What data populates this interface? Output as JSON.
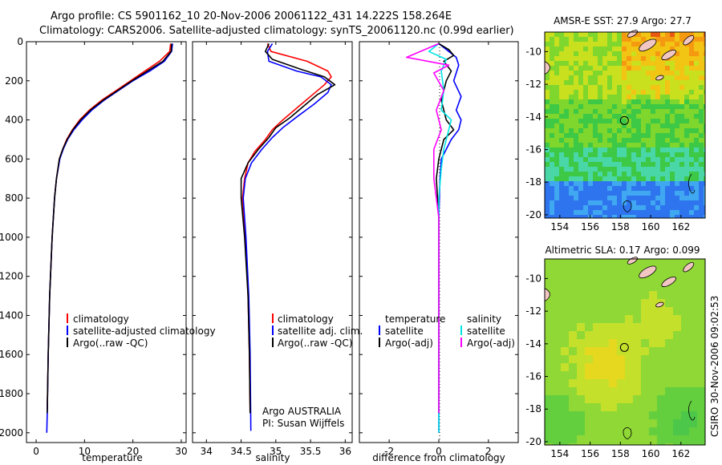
{
  "header": {
    "line1": "Argo profile: CS 5901162_10 20-Nov-2006 20061122_431 14.222S 158.264E",
    "line2": "Climatology: CARS2006. Satellite-adjusted climatology: synTS_20061120.nc (0.99d earlier)"
  },
  "footer": {
    "credit": "CSIRO 30-Nov-2006 09:02:53"
  },
  "colors": {
    "climatology": "#ff0000",
    "satellite": "#0000ff",
    "argo": "#000000",
    "argo_sal_diff": "#ff00ff",
    "sat_sal_diff": "#00e5e5"
  },
  "chart_data": [
    {
      "type": "line",
      "panel": "temperature",
      "xlabel": "temperature",
      "ylabel": "",
      "xlim": [
        -2,
        31
      ],
      "ylim": [
        0,
        2050
      ],
      "xticks": [
        "0",
        "10",
        "20",
        "30"
      ],
      "xtick_values": [
        0,
        10,
        20,
        30
      ],
      "yticks": [
        "0",
        "200",
        "400",
        "600",
        "800",
        "1000",
        "1200",
        "1400",
        "1600",
        "1800",
        "2000"
      ],
      "ytick_values": [
        0,
        200,
        400,
        600,
        800,
        1000,
        1200,
        1400,
        1600,
        1800,
        2000
      ],
      "legend": [
        "climatology",
        "satellite-adjusted climatology",
        "Argo(..raw -QC)"
      ],
      "series": [
        {
          "name": "climatology",
          "color": "#ff0000",
          "x": [
            27.8,
            27.6,
            25.5,
            22.5,
            19.5,
            16.5,
            13.5,
            11,
            9,
            7.5,
            6.3,
            5.5,
            4.8,
            4.2,
            3.8,
            3.3,
            2.8,
            2.5,
            2.3
          ],
          "y": [
            10,
            50,
            100,
            150,
            200,
            250,
            300,
            350,
            400,
            450,
            500,
            550,
            600,
            700,
            800,
            1000,
            1300,
            1600,
            1880
          ]
        },
        {
          "name": "satellite-adjusted climatology",
          "color": "#0000ff",
          "x": [
            28.2,
            28,
            26.5,
            23.5,
            20,
            17,
            14,
            11.5,
            9.5,
            7.8,
            6.5,
            5.6,
            4.9,
            4.2,
            3.8,
            3.3,
            2.8,
            2.5,
            2.3,
            2.2
          ],
          "y": [
            10,
            50,
            100,
            150,
            200,
            250,
            300,
            350,
            400,
            450,
            500,
            550,
            600,
            700,
            800,
            1000,
            1300,
            1600,
            1900,
            2000
          ]
        },
        {
          "name": "Argo(..raw -QC)",
          "color": "#000000",
          "x": [
            28,
            27.9,
            26.2,
            23,
            19.8,
            16.8,
            13.8,
            11.2,
            9.2,
            7.6,
            6.4,
            5.5,
            4.8,
            4.2,
            3.8,
            3.3,
            2.8,
            2.5,
            2.3
          ],
          "y": [
            10,
            50,
            100,
            150,
            200,
            250,
            300,
            350,
            400,
            450,
            500,
            550,
            600,
            700,
            800,
            1000,
            1300,
            1600,
            1900
          ]
        }
      ]
    },
    {
      "type": "line",
      "panel": "salinity",
      "xlabel": "salinity",
      "ylabel": "",
      "xlim": [
        33.8,
        36.1
      ],
      "ylim": [
        0,
        2050
      ],
      "xticks": [
        "34",
        "34.5",
        "35",
        "35.5",
        "36"
      ],
      "xtick_values": [
        34,
        34.5,
        35,
        35.5,
        36
      ],
      "legend": [
        "climatology",
        "satellite adj. clim.",
        "Argo(..raw -QC)"
      ],
      "annotation": [
        "Argo AUSTRALIA",
        "PI: Susan Wijffels"
      ],
      "series": [
        {
          "name": "climatology",
          "color": "#ff0000",
          "x": [
            34.88,
            34.93,
            35.45,
            35.75,
            35.8,
            35.7,
            35.5,
            35.3,
            35.1,
            34.95,
            34.85,
            34.7,
            34.6,
            34.55,
            34.52,
            34.56,
            34.6,
            34.62,
            34.63
          ],
          "y": [
            10,
            50,
            100,
            150,
            180,
            220,
            280,
            340,
            400,
            450,
            500,
            560,
            620,
            700,
            800,
            1000,
            1300,
            1600,
            1900
          ]
        },
        {
          "name": "satellite adj. clim.",
          "color": "#0000ff",
          "x": [
            34.95,
            34.88,
            34.9,
            35.3,
            35.65,
            35.8,
            35.75,
            35.55,
            35.32,
            35.1,
            34.95,
            34.8,
            34.65,
            34.56,
            34.53,
            34.57,
            34.61,
            34.63,
            34.64
          ],
          "y": [
            10,
            50,
            100,
            150,
            180,
            220,
            260,
            320,
            380,
            440,
            490,
            550,
            620,
            700,
            800,
            1000,
            1300,
            1600,
            1990
          ]
        },
        {
          "name": "Argo(..raw -QC)",
          "color": "#000000",
          "x": [
            34.9,
            34.85,
            34.95,
            35.35,
            35.7,
            35.85,
            35.6,
            35.4,
            35.2,
            35.0,
            34.9,
            34.75,
            34.6,
            34.5,
            34.5,
            34.55,
            34.6,
            34.62,
            34.63
          ],
          "y": [
            10,
            50,
            90,
            140,
            180,
            220,
            270,
            330,
            390,
            440,
            490,
            550,
            620,
            700,
            800,
            1000,
            1300,
            1600,
            1900
          ]
        }
      ]
    },
    {
      "type": "line",
      "panel": "difference",
      "xlabel": "difference from climatology",
      "ylabel": "",
      "xlim": [
        -3.2,
        3.2
      ],
      "ylim": [
        0,
        2050
      ],
      "xticks": [
        "-2",
        "0",
        "2"
      ],
      "xtick_values": [
        -2,
        0,
        2
      ],
      "legend_groups": [
        {
          "title": "temperature",
          "entries": [
            "satellite",
            "Argo(-adj)"
          ]
        },
        {
          "title": "salinity",
          "entries": [
            "satellite",
            "Argo(-adj)"
          ]
        }
      ],
      "series": [
        {
          "name": "temperature satellite",
          "color": "#0000ff",
          "x": [
            0,
            0.3,
            0.7,
            0.8,
            0.6,
            0.9,
            0.7,
            0.9,
            0.8,
            0.5,
            0.3,
            0.1,
            0.05,
            0,
            0
          ],
          "y": [
            10,
            40,
            80,
            120,
            200,
            280,
            350,
            400,
            450,
            500,
            550,
            600,
            700,
            900,
            2000
          ]
        },
        {
          "name": "temperature Argo(-adj)",
          "color": "#000000",
          "x": [
            0,
            0.4,
            0.6,
            0.2,
            0.5,
            0.3,
            0.1,
            0.3,
            0.6,
            0.2,
            0,
            -0.1,
            0,
            0
          ],
          "y": [
            10,
            40,
            70,
            100,
            150,
            200,
            300,
            400,
            450,
            500,
            600,
            700,
            900,
            1900
          ]
        },
        {
          "name": "salinity satellite",
          "color": "#00e5e5",
          "x": [
            0,
            -0.4,
            0.3,
            0.1,
            0.2,
            0.1,
            0.5,
            0.4,
            0.2,
            0.1,
            0,
            0,
            0
          ],
          "y": [
            10,
            50,
            90,
            150,
            250,
            350,
            400,
            450,
            550,
            650,
            800,
            1200,
            2000
          ]
        },
        {
          "name": "salinity Argo(-adj)",
          "color": "#ff00ff",
          "x": [
            0,
            -1.3,
            0.4,
            -0.2,
            0.2,
            -0.1,
            0.1,
            -0.2,
            -0.2,
            0,
            0,
            0
          ],
          "y": [
            10,
            80,
            120,
            160,
            250,
            350,
            450,
            550,
            700,
            900,
            1400,
            1900
          ]
        }
      ]
    },
    {
      "type": "heatmap",
      "panel": "sst-map",
      "title": "AMSR-E SST: 27.9 Argo: 27.7",
      "xlim": [
        153,
        163.6
      ],
      "ylim": [
        -20.2,
        -8.8
      ],
      "xticks": [
        "154",
        "156",
        "158",
        "160",
        "162"
      ],
      "xtick_values": [
        154,
        156,
        158,
        160,
        162
      ],
      "yticks": [
        "-10",
        "-12",
        "-14",
        "-16",
        "-18",
        "-20"
      ],
      "ytick_values": [
        -10,
        -12,
        -14,
        -16,
        -18,
        -20
      ],
      "argo_position": {
        "lon": 158.264,
        "lat": -14.222
      }
    },
    {
      "type": "heatmap",
      "panel": "sla-map",
      "title": "Altimetric SLA: 0.17 Argo: 0.099",
      "xlim": [
        153,
        163.6
      ],
      "ylim": [
        -20.2,
        -8.8
      ],
      "xticks": [
        "154",
        "156",
        "158",
        "160",
        "162"
      ],
      "xtick_values": [
        154,
        156,
        158,
        160,
        162
      ],
      "yticks": [
        "-10",
        "-12",
        "-14",
        "-16",
        "-18",
        "-20"
      ],
      "ytick_values": [
        -10,
        -12,
        -14,
        -16,
        -18,
        -20
      ],
      "argo_position": {
        "lon": 158.264,
        "lat": -14.222
      }
    }
  ]
}
